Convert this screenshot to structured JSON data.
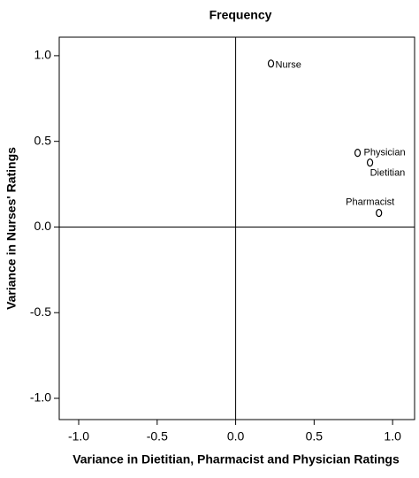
{
  "chart_data": {
    "type": "scatter",
    "title": "Frequency",
    "x_label": "Variance in Dietitian, Pharmacist and Physician Ratings",
    "y_label": "Variance in Nurses' Ratings",
    "xlim": [
      -1.124,
      1.14
    ],
    "ylim": [
      -1.124,
      1.108
    ],
    "xticks": [
      {
        "value": -1,
        "label": "-1.0"
      },
      {
        "value": -0.5,
        "label": "-0.5"
      },
      {
        "value": 0,
        "label": "0.0"
      },
      {
        "value": 0.5,
        "label": "0.5"
      },
      {
        "value": 1,
        "label": "1.0"
      }
    ],
    "yticks": [
      {
        "value": -1,
        "label": "-1.0"
      },
      {
        "value": -0.5,
        "label": "-0.5"
      },
      {
        "value": 0,
        "label": "0.0"
      },
      {
        "value": 0.5,
        "label": "0.5"
      },
      {
        "value": 1,
        "label": "1.0"
      }
    ],
    "color": "#000000",
    "points": [
      {
        "label": "Nurse",
        "x": 0.225,
        "y": 0.954
      },
      {
        "label": "Physician",
        "x": 0.777,
        "y": 0.433
      },
      {
        "label": "Dietitian",
        "x": 0.856,
        "y": 0.376
      },
      {
        "label": "Pharmacist",
        "x": 0.913,
        "y": 0.082
      }
    ]
  }
}
